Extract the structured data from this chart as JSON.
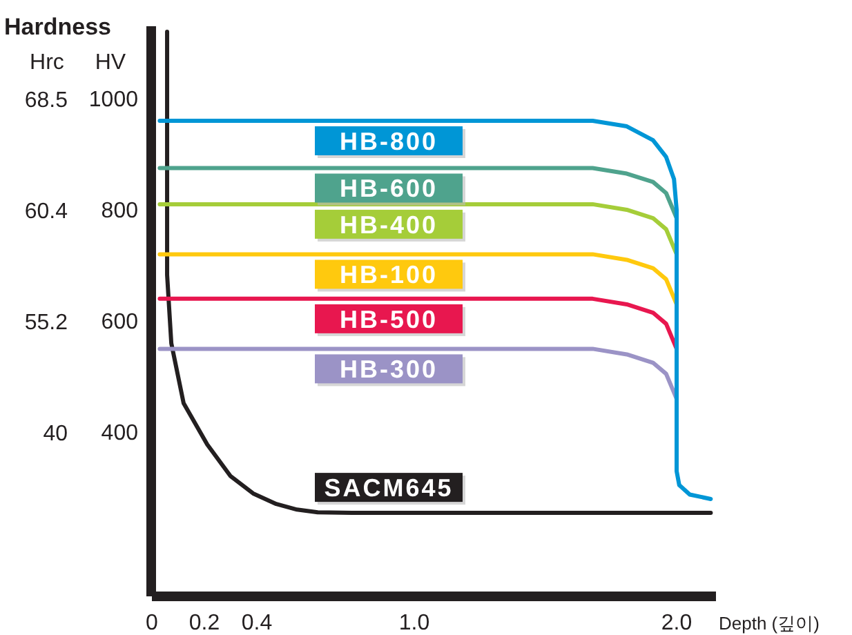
{
  "chart_data": {
    "type": "line",
    "title": "Hardness",
    "ylabel": "HV",
    "y2label": "Hrc",
    "xlabel": "Depth (깊이)",
    "xlim": [
      0,
      2.15
    ],
    "xticks": [
      0,
      0.2,
      0.4,
      {
        "value": 1,
        "label": "1.0"
      },
      {
        "value": 2,
        "label": "2.0"
      }
    ],
    "ylim": [
      105,
      1130
    ],
    "yticks": [
      400,
      600,
      800,
      1000
    ],
    "annotations": [
      "40",
      "55.2",
      "60.4",
      "68.5"
    ],
    "series": [
      {
        "name": "HB-800",
        "color": "#0096d6",
        "x": [
          0.03,
          1.68,
          1.81,
          1.91,
          1.96,
          1.99,
          2.0,
          2.0,
          2.01,
          2.05,
          2.13
        ],
        "values": [
          960,
          960,
          950,
          925,
          895,
          855,
          800,
          330,
          305,
          288,
          280
        ]
      },
      {
        "name": "HB-600",
        "color": "#4fa38d",
        "x": [
          0.03,
          1.68,
          1.81,
          1.91,
          1.96,
          2.0
        ],
        "values": [
          875,
          875,
          865,
          850,
          830,
          785
        ]
      },
      {
        "name": "HB-400",
        "color": "#a5cd39",
        "x": [
          0.03,
          1.68,
          1.81,
          1.91,
          1.96,
          2.0
        ],
        "values": [
          810,
          810,
          800,
          785,
          765,
          720
        ]
      },
      {
        "name": "HB-100",
        "color": "#ffc90e",
        "x": [
          0.03,
          1.68,
          1.81,
          1.91,
          1.96,
          2.0
        ],
        "values": [
          720,
          720,
          710,
          695,
          675,
          630
        ]
      },
      {
        "name": "HB-500",
        "color": "#e8174f",
        "x": [
          0.03,
          1.68,
          1.81,
          1.91,
          1.96,
          2.0
        ],
        "values": [
          640,
          640,
          630,
          615,
          595,
          550
        ]
      },
      {
        "name": "HB-300",
        "color": "#9b93c6",
        "x": [
          0.03,
          1.68,
          1.81,
          1.91,
          1.96,
          2.0
        ],
        "values": [
          550,
          550,
          540,
          525,
          505,
          460
        ]
      },
      {
        "name": "SACM645",
        "color": "#231f20",
        "x": [
          0.058,
          0.058,
          0.074,
          0.121,
          0.211,
          0.3,
          0.386,
          0.474,
          0.553,
          0.632,
          0.789,
          2.13
        ],
        "values": [
          1120,
          683,
          560,
          452,
          378,
          321,
          290,
          271,
          261,
          256,
          255,
          255
        ]
      }
    ]
  }
}
